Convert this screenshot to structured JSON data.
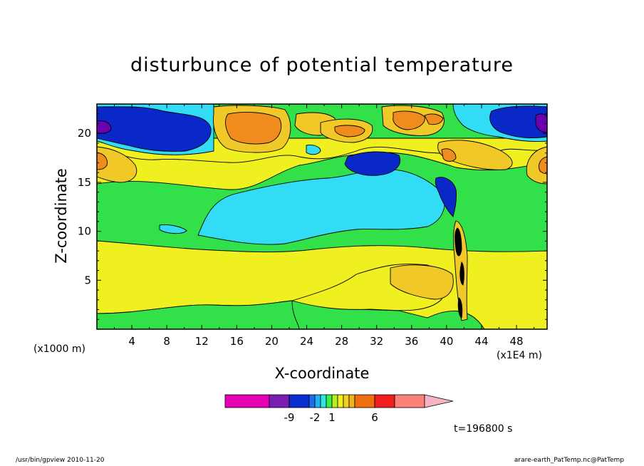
{
  "chart_data": {
    "type": "heatmap",
    "title": "disturbunce of potential temperature",
    "xlabel": "X-coordinate",
    "ylabel": "Z-coordinate",
    "x_unit_label": "(x1000 m)",
    "x_unit_label2": "(x1E4 m)",
    "xlim": [
      0,
      51.5
    ],
    "ylim": [
      0,
      23
    ],
    "x_ticks": [
      4,
      8,
      12,
      16,
      20,
      24,
      28,
      32,
      36,
      40,
      44,
      48
    ],
    "y_ticks": [
      5,
      10,
      15,
      20
    ],
    "time_label": "t=196800 s",
    "colorbar": {
      "tick_labels": [
        "-9",
        "-2",
        "1",
        "6"
      ],
      "colors": [
        "#e600b4",
        "#7a1fb4",
        "#0a2fd0",
        "#1f6cf0",
        "#1fb4f0",
        "#2fe6e6",
        "#3cf04c",
        "#b4f01e",
        "#f0f01e",
        "#f0d21e",
        "#f0b41e",
        "#f06e10",
        "#f01e1e",
        "#fa8278",
        "#f5b4c3"
      ]
    },
    "levels": {
      "dark_purple": "#6a00b0",
      "dark_blue": "#0a28c8",
      "medium_blue": "#2a6ae6",
      "cyan": "#32dcf5",
      "green": "#32e04a",
      "yellow": "#f0f020",
      "gold": "#f0c828",
      "orange": "#f08c1e"
    }
  },
  "footer": {
    "left": "/usr/bin/gpview   2010-11-20",
    "right": "arare-earth_PatTemp.nc@PatTemp"
  }
}
